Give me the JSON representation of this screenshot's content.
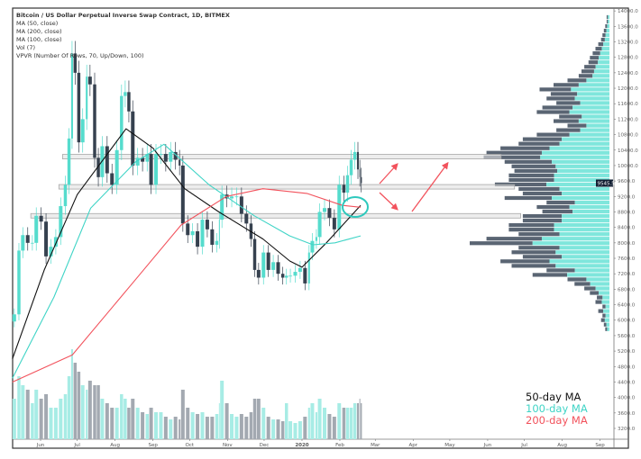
{
  "chart_data": {
    "type": "candlestick",
    "title": "Bitcoin / US Dollar Perpetual Inverse Swap Contract, 1D, BITMEX",
    "indicators": [
      "MA (50, close)",
      "MA (200, close)",
      "MA (100, close)",
      "Vol (7)",
      "VPVR (Number Of Rows, 70, Up/Down, 100)"
    ],
    "ma_legend": [
      {
        "label": "50-day MA",
        "color": "#111111"
      },
      {
        "label": "100-day MA",
        "color": "#3fd4c6"
      },
      {
        "label": "200-day MA",
        "color": "#f2525c"
      }
    ],
    "colors": {
      "up": "#55dccd",
      "down": "#36414f",
      "vpvr_up": "#7fe6dc",
      "vpvr_down": "#5a6573",
      "circle": "#2ec9bd",
      "arrow": "#f2525c"
    },
    "last_price_label": "9545.5",
    "ylim": [
      3000,
      14000
    ],
    "y_ticks": [
      "3200.0",
      "3600.0",
      "4000.0",
      "4400.0",
      "4800.0",
      "5200.0",
      "5600.0",
      "6000.0",
      "6400.0",
      "6800.0",
      "7200.0",
      "7600.0",
      "8000.0",
      "8400.0",
      "8800.0",
      "9200.0",
      "9600.0",
      "10000.0",
      "10400.0",
      "10800.0",
      "11200.0",
      "11600.0",
      "12000.0",
      "12400.0",
      "12800.0",
      "13200.0",
      "13600.0",
      "14000.0"
    ],
    "x_ticks": [
      {
        "label": "Jun",
        "date": "2019-06-01"
      },
      {
        "label": "Jul",
        "date": "2019-07-01"
      },
      {
        "label": "Aug",
        "date": "2019-08-01"
      },
      {
        "label": "Sep",
        "date": "2019-09-01"
      },
      {
        "label": "Oct",
        "date": "2019-10-01"
      },
      {
        "label": "Nov",
        "date": "2019-11-01"
      },
      {
        "label": "Dec",
        "date": "2019-12-01"
      },
      {
        "label": "2020",
        "date": "2020-01-01"
      },
      {
        "label": "Feb",
        "date": "2020-02-01"
      },
      {
        "label": "Mar",
        "date": "2020-03-01"
      },
      {
        "label": "Apr",
        "date": "2020-04-01"
      },
      {
        "label": "May",
        "date": "2020-05-01"
      },
      {
        "label": "Jun",
        "date": "2020-06-01"
      },
      {
        "label": "Jul",
        "date": "2020-07-01"
      },
      {
        "label": "Aug",
        "date": "2020-08-01"
      },
      {
        "label": "Sep",
        "date": "2020-09-01"
      }
    ],
    "candles_close_volume": [
      [
        "2019-05-09",
        6150,
        45
      ],
      [
        "2019-05-13",
        7800,
        70
      ],
      [
        "2019-05-16",
        8200,
        60
      ],
      [
        "2019-05-20",
        8000,
        55
      ],
      [
        "2019-05-24",
        8000,
        40
      ],
      [
        "2019-05-27",
        8700,
        55
      ],
      [
        "2019-05-31",
        8550,
        45
      ],
      [
        "2019-06-04",
        7650,
        50
      ],
      [
        "2019-06-08",
        7900,
        35
      ],
      [
        "2019-06-12",
        8150,
        35
      ],
      [
        "2019-06-16",
        8950,
        45
      ],
      [
        "2019-06-20",
        9500,
        50
      ],
      [
        "2019-06-23",
        10700,
        70
      ],
      [
        "2019-06-26",
        12900,
        100
      ],
      [
        "2019-06-28",
        12400,
        85
      ],
      [
        "2019-07-01",
        10600,
        75
      ],
      [
        "2019-07-04",
        11200,
        60
      ],
      [
        "2019-07-08",
        12300,
        55
      ],
      [
        "2019-07-10",
        12100,
        65
      ],
      [
        "2019-07-14",
        10200,
        60
      ],
      [
        "2019-07-17",
        9700,
        60
      ],
      [
        "2019-07-20",
        10500,
        45
      ],
      [
        "2019-07-24",
        9800,
        40
      ],
      [
        "2019-07-28",
        9500,
        35
      ],
      [
        "2019-08-01",
        10400,
        35
      ],
      [
        "2019-08-05",
        11800,
        50
      ],
      [
        "2019-08-08",
        11900,
        45
      ],
      [
        "2019-08-11",
        11400,
        35
      ],
      [
        "2019-08-14",
        10000,
        45
      ],
      [
        "2019-08-18",
        10200,
        35
      ],
      [
        "2019-08-22",
        10100,
        30
      ],
      [
        "2019-08-26",
        10300,
        28
      ],
      [
        "2019-08-29",
        9500,
        35
      ],
      [
        "2019-09-02",
        10300,
        30
      ],
      [
        "2019-09-06",
        10300,
        30
      ],
      [
        "2019-09-10",
        10100,
        25
      ],
      [
        "2019-09-14",
        10350,
        22
      ],
      [
        "2019-09-18",
        10150,
        25
      ],
      [
        "2019-09-22",
        10000,
        22
      ],
      [
        "2019-09-24",
        8500,
        55
      ],
      [
        "2019-09-28",
        8200,
        35
      ],
      [
        "2019-10-02",
        8300,
        30
      ],
      [
        "2019-10-06",
        7900,
        28
      ],
      [
        "2019-10-10",
        8600,
        30
      ],
      [
        "2019-10-14",
        8350,
        25
      ],
      [
        "2019-10-18",
        7950,
        25
      ],
      [
        "2019-10-22",
        8050,
        28
      ],
      [
        "2019-10-25",
        8600,
        40
      ],
      [
        "2019-10-26",
        9250,
        65
      ],
      [
        "2019-10-30",
        9150,
        40
      ],
      [
        "2019-11-03",
        9200,
        28
      ],
      [
        "2019-11-07",
        9200,
        25
      ],
      [
        "2019-11-11",
        8750,
        28
      ],
      [
        "2019-11-15",
        8500,
        25
      ],
      [
        "2019-11-19",
        8100,
        30
      ],
      [
        "2019-11-22",
        7300,
        45
      ],
      [
        "2019-11-25",
        7100,
        45
      ],
      [
        "2019-11-29",
        7750,
        35
      ],
      [
        "2019-12-03",
        7300,
        25
      ],
      [
        "2019-12-07",
        7500,
        22
      ],
      [
        "2019-12-11",
        7200,
        22
      ],
      [
        "2019-12-15",
        7100,
        20
      ],
      [
        "2019-12-18",
        7150,
        40
      ],
      [
        "2019-12-21",
        7150,
        20
      ],
      [
        "2019-12-25",
        7250,
        18
      ],
      [
        "2019-12-29",
        7350,
        20
      ],
      [
        "2020-01-02",
        6950,
        25
      ],
      [
        "2020-01-06",
        7750,
        35
      ],
      [
        "2020-01-08",
        8050,
        40
      ],
      [
        "2020-01-12",
        8150,
        30
      ],
      [
        "2020-01-14",
        8800,
        45
      ],
      [
        "2020-01-18",
        8900,
        35
      ],
      [
        "2020-01-22",
        8650,
        28
      ],
      [
        "2020-01-26",
        8350,
        25
      ],
      [
        "2020-01-30",
        9500,
        40
      ],
      [
        "2020-02-03",
        9300,
        35
      ],
      [
        "2020-02-06",
        9750,
        35
      ],
      [
        "2020-02-09",
        10150,
        35
      ],
      [
        "2020-02-12",
        10350,
        40
      ],
      [
        "2020-02-15",
        9900,
        40
      ],
      [
        "2020-02-17",
        9700,
        45
      ],
      [
        "2020-02-18",
        9545.5,
        40
      ]
    ],
    "ma50": [
      [
        "2019-05-09",
        5000
      ],
      [
        "2019-06-04",
        7300
      ],
      [
        "2019-07-01",
        9250
      ],
      [
        "2019-08-10",
        10950
      ],
      [
        "2019-09-01",
        10450
      ],
      [
        "2019-09-27",
        9400
      ],
      [
        "2019-10-25",
        8800
      ],
      [
        "2019-11-30",
        8100
      ],
      [
        "2019-12-22",
        7530
      ],
      [
        "2020-01-01",
        7370
      ],
      [
        "2020-01-21",
        8000
      ],
      [
        "2020-02-18",
        8970
      ]
    ],
    "ma100": [
      [
        "2019-05-09",
        4500
      ],
      [
        "2019-06-12",
        6600
      ],
      [
        "2019-07-12",
        8900
      ],
      [
        "2019-08-18",
        10100
      ],
      [
        "2019-09-10",
        10550
      ],
      [
        "2019-10-17",
        9500
      ],
      [
        "2019-11-23",
        8700
      ],
      [
        "2019-12-22",
        8180
      ],
      [
        "2020-01-10",
        7950
      ],
      [
        "2020-01-28",
        8000
      ],
      [
        "2020-02-18",
        8180
      ]
    ],
    "ma200": [
      [
        "2019-05-09",
        4400
      ],
      [
        "2019-06-27",
        5100
      ],
      [
        "2019-08-18",
        7060
      ],
      [
        "2019-09-24",
        8460
      ],
      [
        "2019-10-31",
        9200
      ],
      [
        "2019-11-30",
        9400
      ],
      [
        "2020-01-05",
        9280
      ],
      [
        "2020-02-03",
        8970
      ],
      [
        "2020-02-18",
        8920
      ]
    ],
    "horizontal_bands": [
      {
        "price": 10230,
        "start": "2019-06-19",
        "end": "2020-06-12"
      },
      {
        "price": 9450,
        "start": "2019-06-16",
        "end": "2020-06-23"
      },
      {
        "price": 8700,
        "start": "2019-05-24",
        "end": "2020-06-28"
      }
    ],
    "vpvr": {
      "rows": 70,
      "price_low": 5700,
      "row_step": 117,
      "volume": [
        3,
        4,
        6,
        5,
        8,
        5,
        10,
        9,
        14,
        18,
        25,
        30,
        55,
        45,
        70,
        78,
        62,
        70,
        65,
        100,
        88,
        65,
        72,
        72,
        62,
        62,
        48,
        52,
        45,
        75,
        62,
        65,
        82,
        72,
        72,
        68,
        70,
        75,
        90,
        88,
        78,
        65,
        62,
        52,
        38,
        30,
        40,
        36,
        52,
        48,
        38,
        45,
        42,
        50,
        40,
        30,
        22,
        20,
        18,
        15,
        14,
        12,
        10,
        8,
        6,
        5,
        4,
        3,
        2,
        2
      ],
      "up_share": 0.55
    }
  }
}
